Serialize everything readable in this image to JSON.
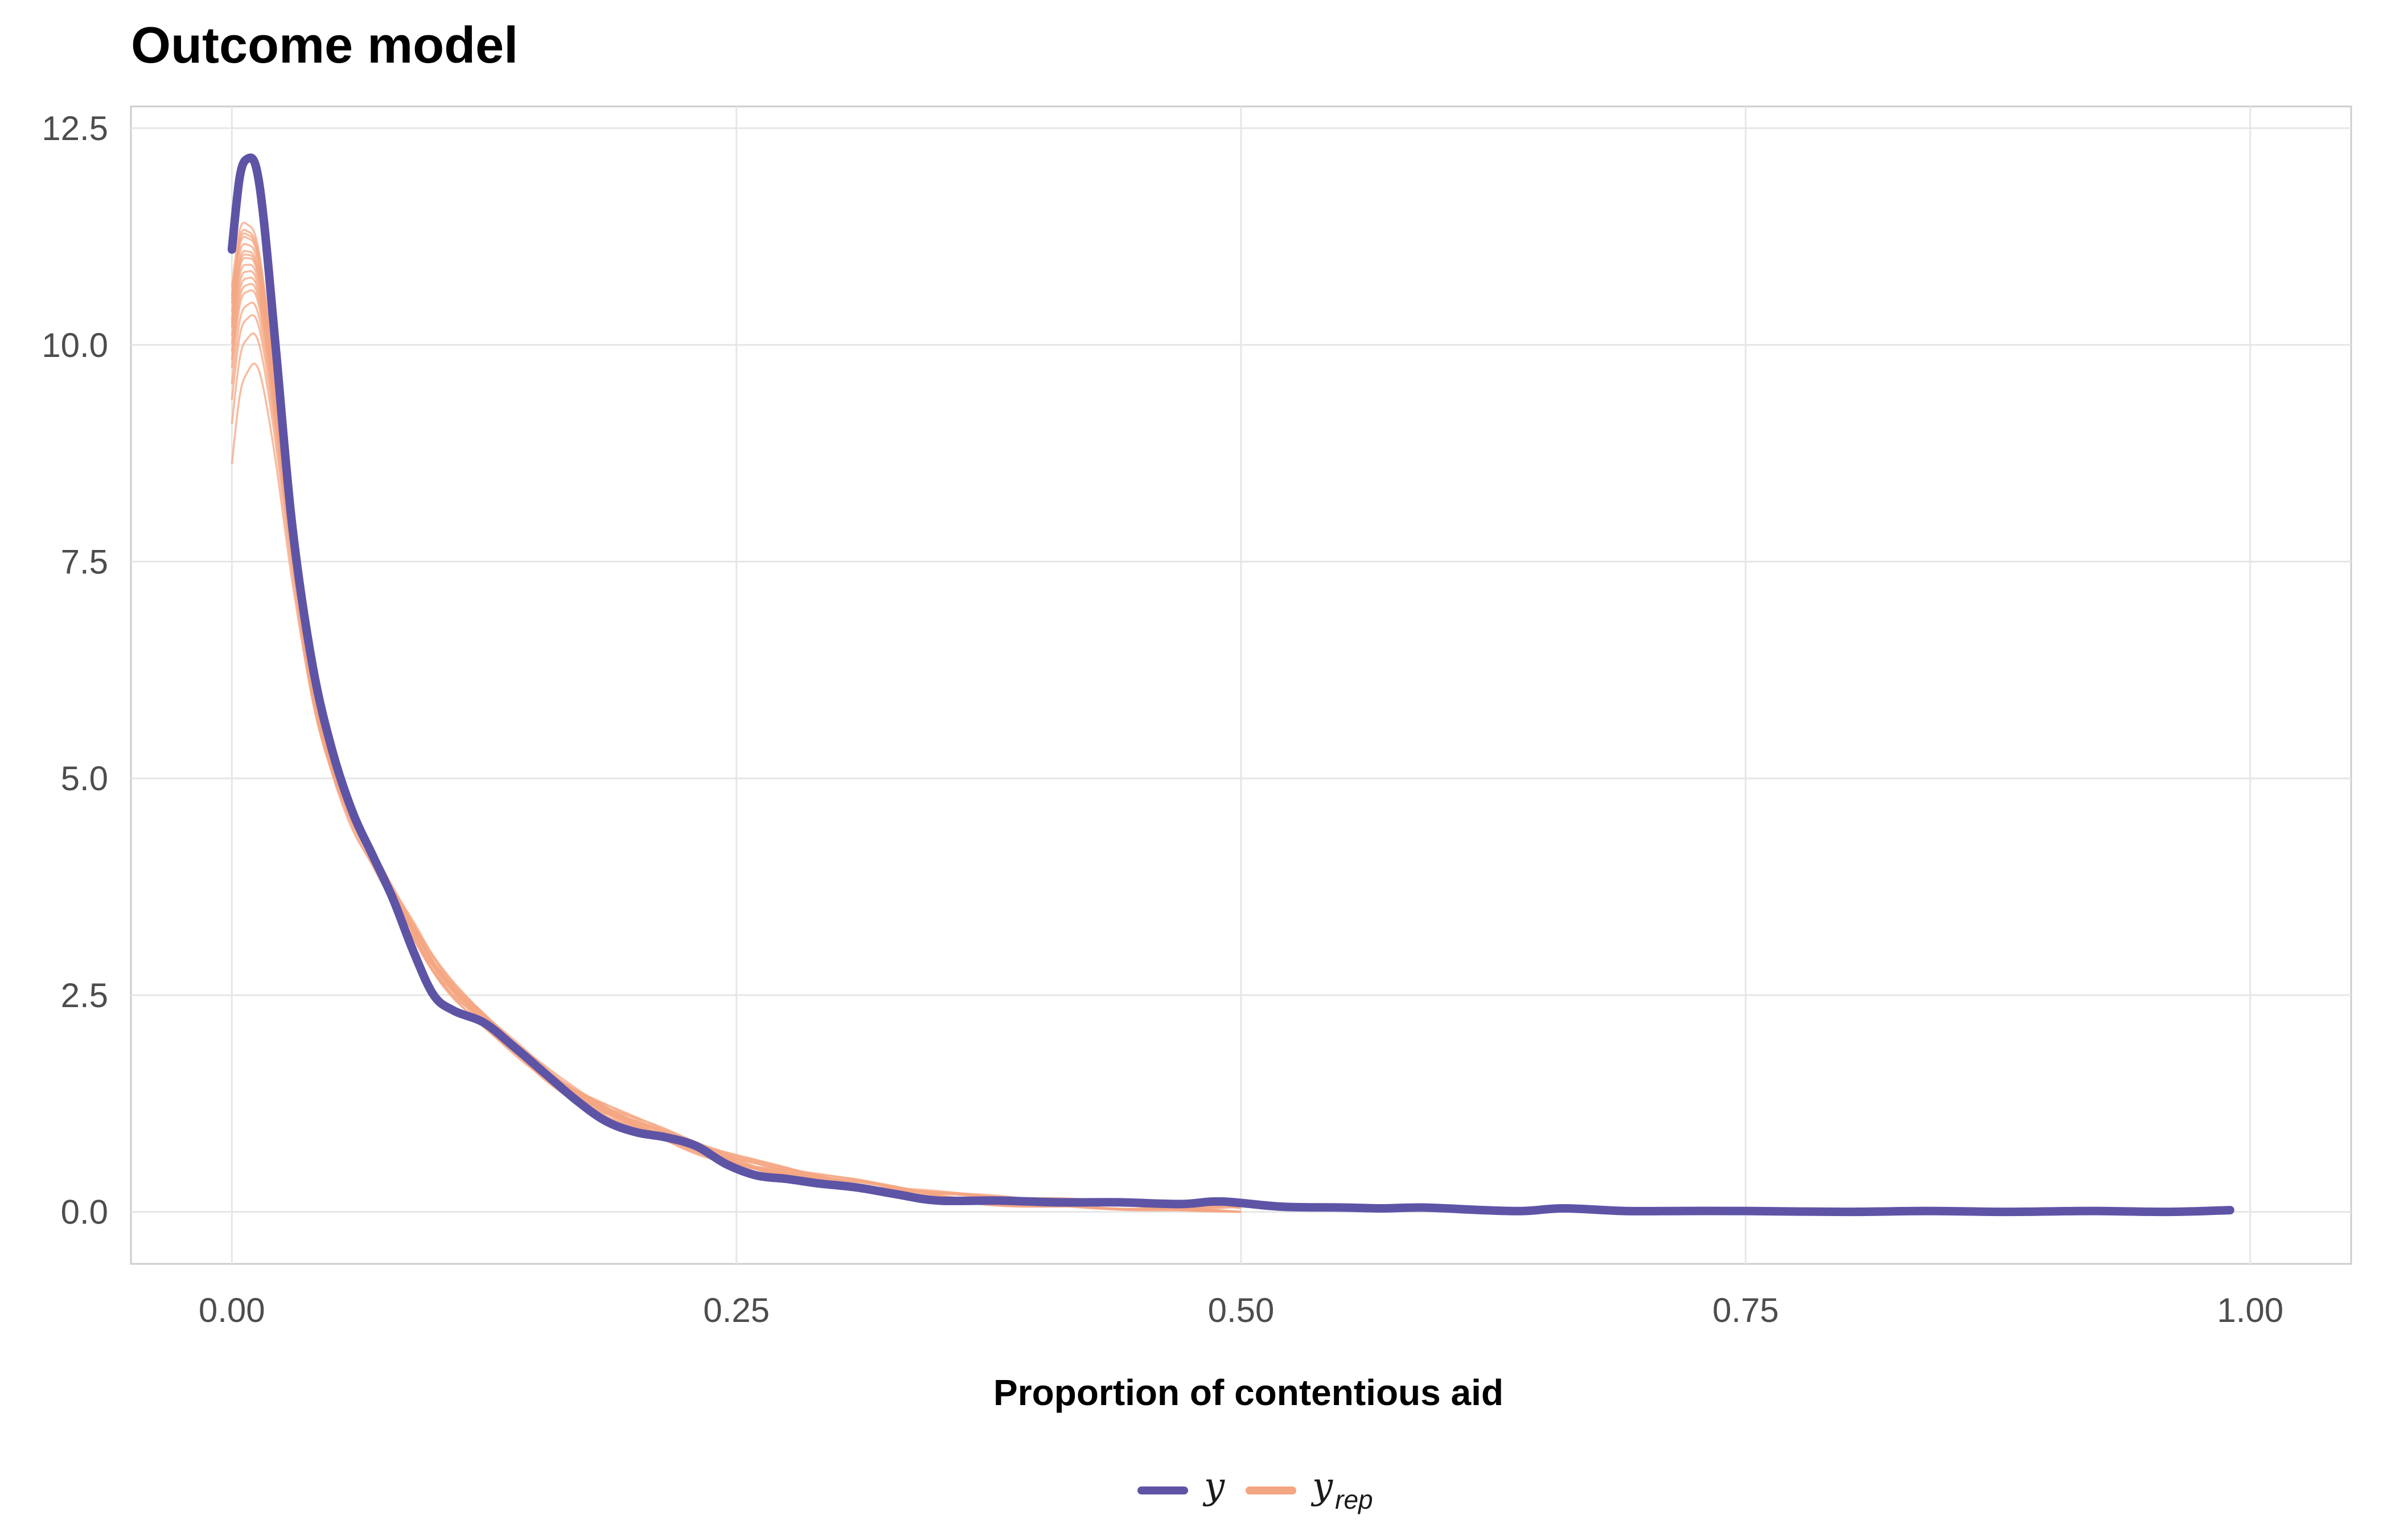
{
  "chart_data": {
    "type": "line",
    "title": "Outcome model",
    "xlabel": "Proportion of contentious aid",
    "ylabel": "",
    "xlim": [
      -0.05,
      1.05
    ],
    "ylim": [
      -0.6,
      12.75
    ],
    "x_ticks": [
      {
        "value": 0.0,
        "label": "0.00"
      },
      {
        "value": 0.25,
        "label": "0.25"
      },
      {
        "value": 0.5,
        "label": "0.50"
      },
      {
        "value": 0.75,
        "label": "0.75"
      },
      {
        "value": 1.0,
        "label": "1.00"
      }
    ],
    "y_ticks": [
      {
        "value": 0.0,
        "label": "0.0"
      },
      {
        "value": 2.5,
        "label": "2.5"
      },
      {
        "value": 5.0,
        "label": "5.0"
      },
      {
        "value": 7.5,
        "label": "7.5"
      },
      {
        "value": 10.0,
        "label": "10.0"
      },
      {
        "value": 12.5,
        "label": "12.5"
      }
    ],
    "grid": true,
    "legend_position": "bottom",
    "legend": [
      {
        "key": "y",
        "main": "y",
        "sub": "",
        "color": "#5e54a6"
      },
      {
        "key": "yrep",
        "main": "y",
        "sub": "rep",
        "color": "#f4a582"
      }
    ],
    "observed": {
      "color": "#5e54a6",
      "points": [
        [
          0.0,
          11.1
        ],
        [
          0.004,
          11.95
        ],
        [
          0.008,
          12.15
        ],
        [
          0.012,
          12.05
        ],
        [
          0.016,
          11.4
        ],
        [
          0.022,
          9.9
        ],
        [
          0.03,
          7.9
        ],
        [
          0.04,
          6.3
        ],
        [
          0.05,
          5.3
        ],
        [
          0.06,
          4.6
        ],
        [
          0.07,
          4.1
        ],
        [
          0.08,
          3.6
        ],
        [
          0.09,
          3.0
        ],
        [
          0.1,
          2.5
        ],
        [
          0.11,
          2.32
        ],
        [
          0.125,
          2.18
        ],
        [
          0.14,
          1.9
        ],
        [
          0.155,
          1.6
        ],
        [
          0.17,
          1.3
        ],
        [
          0.185,
          1.05
        ],
        [
          0.2,
          0.92
        ],
        [
          0.215,
          0.86
        ],
        [
          0.23,
          0.76
        ],
        [
          0.245,
          0.55
        ],
        [
          0.26,
          0.42
        ],
        [
          0.275,
          0.38
        ],
        [
          0.29,
          0.33
        ],
        [
          0.31,
          0.28
        ],
        [
          0.33,
          0.2
        ],
        [
          0.35,
          0.13
        ],
        [
          0.38,
          0.13
        ],
        [
          0.41,
          0.11
        ],
        [
          0.44,
          0.11
        ],
        [
          0.47,
          0.09
        ],
        [
          0.49,
          0.12
        ],
        [
          0.52,
          0.06
        ],
        [
          0.55,
          0.05
        ],
        [
          0.57,
          0.04
        ],
        [
          0.59,
          0.05
        ],
        [
          0.62,
          0.02
        ],
        [
          0.64,
          0.01
        ],
        [
          0.66,
          0.04
        ],
        [
          0.69,
          0.01
        ],
        [
          0.72,
          0.01
        ],
        [
          0.75,
          0.01
        ],
        [
          0.8,
          0.0
        ],
        [
          0.84,
          0.01
        ],
        [
          0.88,
          0.0
        ],
        [
          0.92,
          0.01
        ],
        [
          0.96,
          0.0
        ],
        [
          0.99,
          0.02
        ]
      ]
    },
    "replicated": {
      "color": "#f4a582",
      "peaks": [
        9.3,
        9.8,
        10.1,
        10.3,
        10.5,
        10.6,
        10.7,
        10.8,
        10.9,
        11.0,
        11.05,
        11.1,
        11.2,
        11.3,
        11.35,
        11.4,
        11.5
      ],
      "base_points": [
        [
          0.0,
          10.2
        ],
        [
          0.004,
          10.9
        ],
        [
          0.008,
          11.0
        ],
        [
          0.012,
          10.9
        ],
        [
          0.016,
          10.4
        ],
        [
          0.022,
          9.3
        ],
        [
          0.03,
          7.7
        ],
        [
          0.04,
          6.1
        ],
        [
          0.05,
          5.15
        ],
        [
          0.06,
          4.55
        ],
        [
          0.07,
          4.1
        ],
        [
          0.08,
          3.65
        ],
        [
          0.09,
          3.25
        ],
        [
          0.1,
          2.85
        ],
        [
          0.11,
          2.55
        ],
        [
          0.125,
          2.22
        ],
        [
          0.14,
          1.9
        ],
        [
          0.155,
          1.6
        ],
        [
          0.17,
          1.36
        ],
        [
          0.185,
          1.18
        ],
        [
          0.2,
          1.02
        ],
        [
          0.215,
          0.88
        ],
        [
          0.23,
          0.74
        ],
        [
          0.245,
          0.62
        ],
        [
          0.26,
          0.53
        ],
        [
          0.275,
          0.45
        ],
        [
          0.29,
          0.38
        ],
        [
          0.31,
          0.31
        ],
        [
          0.33,
          0.24
        ],
        [
          0.35,
          0.18
        ],
        [
          0.38,
          0.13
        ],
        [
          0.41,
          0.1
        ],
        [
          0.44,
          0.08
        ],
        [
          0.47,
          0.06
        ],
        [
          0.5,
          0.04
        ]
      ]
    }
  }
}
